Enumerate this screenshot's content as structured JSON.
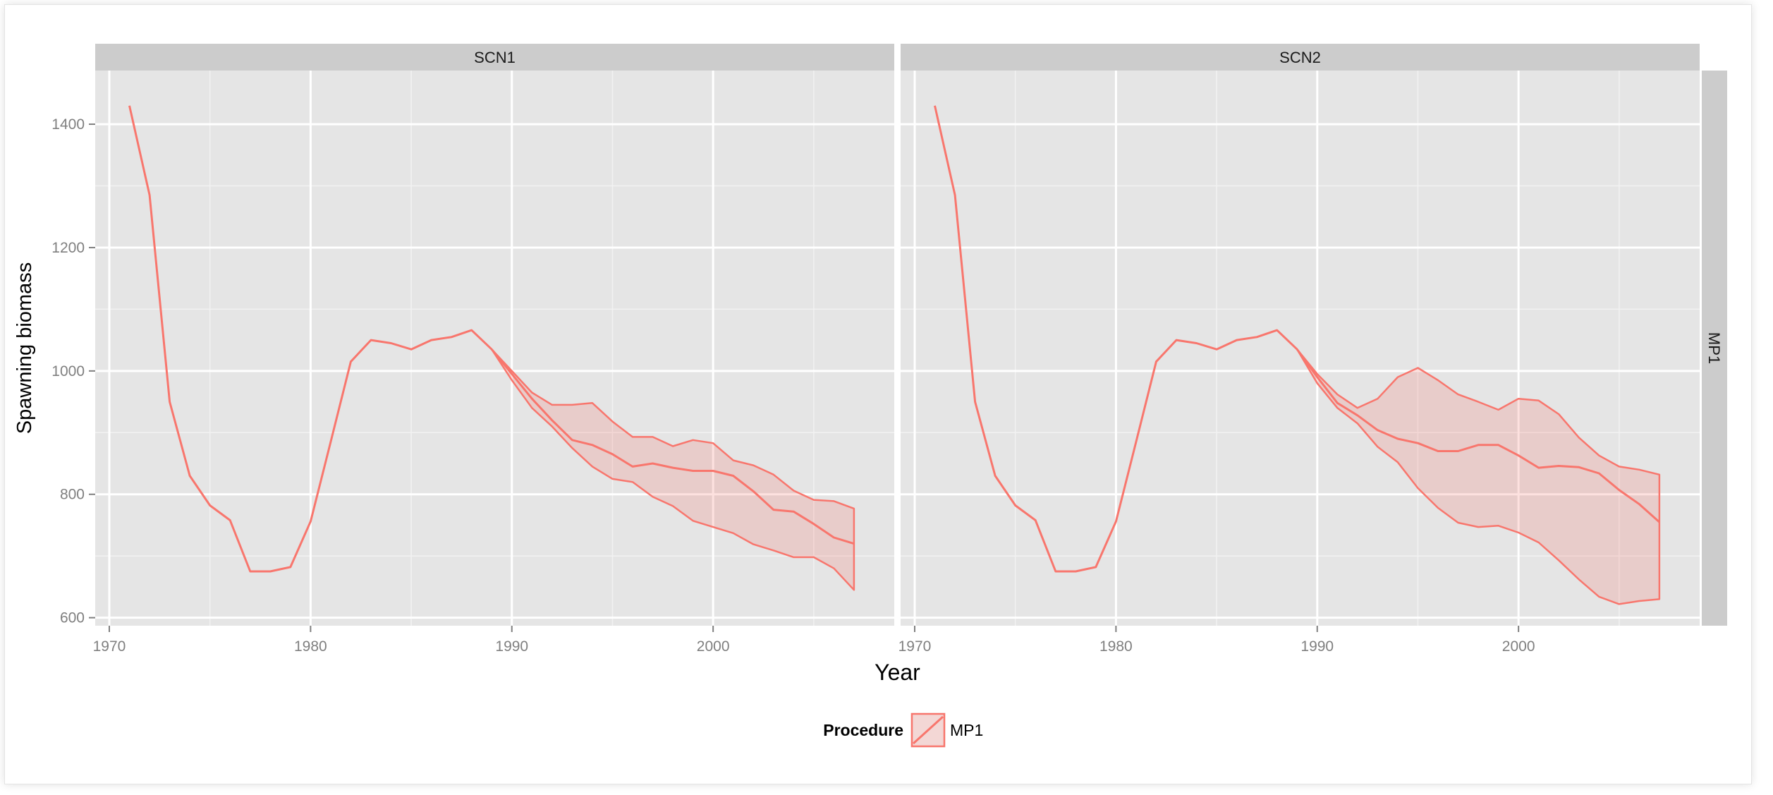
{
  "chart_data": {
    "type": "area",
    "ylabel": "Spawning biomass",
    "xlabel": "Year",
    "xlim": [
      1969.3,
      2009.0
    ],
    "ylim": [
      587,
      1487
    ],
    "xticks": [
      1970,
      1980,
      1990,
      2000
    ],
    "yticks": [
      600,
      800,
      1000,
      1200,
      1400
    ],
    "xtick_labels": [
      "1970",
      "1980",
      "1990",
      "2000"
    ],
    "ytick_labels": [
      "600",
      "800",
      "1000",
      "1200",
      "1400"
    ],
    "grid": true,
    "facet_row_label": "MP1",
    "legend": {
      "title": "Procedure",
      "position": "bottom",
      "entries": [
        {
          "label": "MP1",
          "color": "#F8766D"
        }
      ]
    },
    "panels": [
      {
        "label": "SCN1",
        "history": {
          "x": [
            1971,
            1972,
            1973,
            1974,
            1975,
            1976,
            1977,
            1978,
            1979,
            1980,
            1981,
            1982,
            1983,
            1984,
            1985,
            1986,
            1987,
            1988,
            1989
          ],
          "y": [
            1430,
            1285,
            950,
            830,
            782,
            758,
            675,
            675,
            682,
            756,
            885,
            1015,
            1050,
            1045,
            1035,
            1050,
            1055,
            1066,
            1035
          ]
        },
        "projection": {
          "x": [
            1989,
            1990,
            1991,
            1992,
            1993,
            1994,
            1995,
            1996,
            1997,
            1998,
            1999,
            2000,
            2001,
            2002,
            2003,
            2004,
            2005,
            2006,
            2007
          ],
          "median": [
            1035,
            995,
            955,
            920,
            888,
            880,
            865,
            845,
            850,
            843,
            838,
            838,
            830,
            805,
            775,
            772,
            752,
            730,
            720
          ],
          "upper": [
            1035,
            1000,
            965,
            945,
            945,
            948,
            918,
            893,
            893,
            878,
            888,
            883,
            855,
            847,
            832,
            806,
            791,
            789,
            777
          ],
          "lower": [
            1035,
            985,
            940,
            910,
            875,
            845,
            825,
            820,
            796,
            781,
            757,
            747,
            737,
            719,
            709,
            698,
            698,
            680,
            645
          ]
        }
      },
      {
        "label": "SCN2",
        "history": {
          "x": [
            1971,
            1972,
            1973,
            1974,
            1975,
            1976,
            1977,
            1978,
            1979,
            1980,
            1981,
            1982,
            1983,
            1984,
            1985,
            1986,
            1987,
            1988,
            1989
          ],
          "y": [
            1430,
            1285,
            950,
            830,
            782,
            758,
            675,
            675,
            682,
            756,
            885,
            1015,
            1050,
            1045,
            1035,
            1050,
            1055,
            1066,
            1035
          ]
        },
        "projection": {
          "x": [
            1989,
            1990,
            1991,
            1992,
            1993,
            1994,
            1995,
            1996,
            1997,
            1998,
            1999,
            2000,
            2001,
            2002,
            2003,
            2004,
            2005,
            2006,
            2007
          ],
          "median": [
            1035,
            990,
            948,
            928,
            904,
            890,
            883,
            870,
            870,
            880,
            880,
            863,
            843,
            846,
            844,
            834,
            807,
            784,
            755
          ],
          "upper": [
            1035,
            995,
            962,
            940,
            955,
            990,
            1005,
            985,
            962,
            950,
            937,
            955,
            952,
            930,
            892,
            863,
            845,
            840,
            832
          ],
          "lower": [
            1035,
            980,
            940,
            915,
            877,
            852,
            810,
            778,
            754,
            747,
            749,
            738,
            722,
            693,
            662,
            634,
            622,
            627,
            630
          ]
        }
      }
    ]
  },
  "colors": {
    "series": "#F8766D",
    "ribbon_fill": "rgba(248,118,109,0.22)",
    "panel_bg": "#E5E5E5",
    "grid_major": "#FFFFFF",
    "strip_bg": "#CCCCCC",
    "tick_text": "#7F7F7F"
  }
}
